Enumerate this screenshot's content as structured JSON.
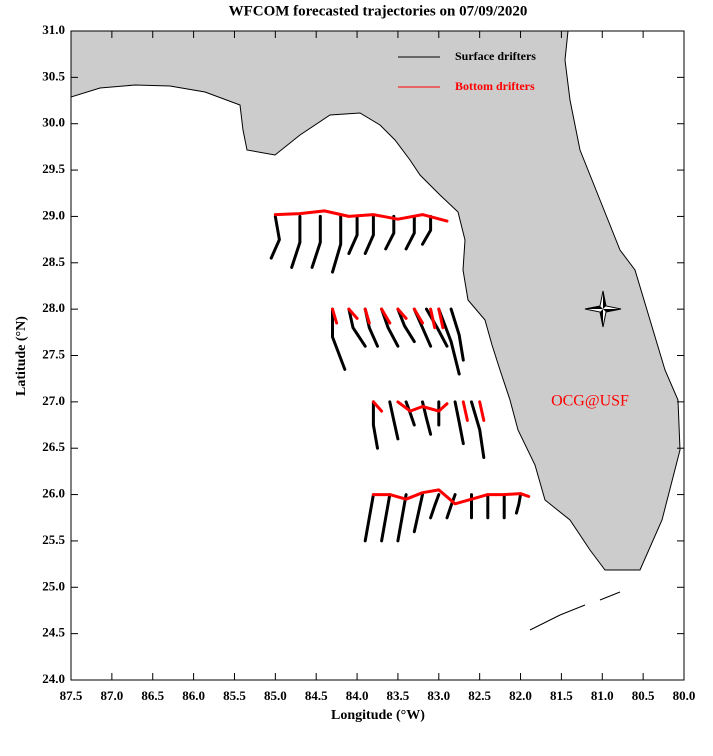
{
  "chart_data": {
    "type": "trajectory-map",
    "title": "WFCOM forecasted trajectories on 07/09/2020",
    "x_label": "Longitude (°W)",
    "y_label": "Latitude (°N)",
    "annotation": "OCG@USF",
    "xlim": [
      87.5,
      80.0
    ],
    "xticks": [
      87.5,
      {
        "value": 87,
        "label": "87.0"
      },
      86.5,
      {
        "value": 86,
        "label": "86.0"
      },
      85.5,
      {
        "value": 85,
        "label": "85.0"
      },
      84.5,
      {
        "value": 84,
        "label": "84.0"
      },
      83.5,
      {
        "value": 83,
        "label": "83.0"
      },
      82.5,
      {
        "value": 82,
        "label": "82.0"
      },
      81.5,
      {
        "value": 81,
        "label": "81.0"
      },
      80.5,
      {
        "value": 80,
        "label": "80.0"
      }
    ],
    "ylim": [
      24.0,
      31.0
    ],
    "yticks": [
      {
        "value": 24,
        "label": "24.0"
      },
      24.5,
      {
        "value": 25,
        "label": "25.0"
      },
      25.5,
      {
        "value": 26,
        "label": "26.0"
      },
      26.5,
      {
        "value": 27,
        "label": "27.0"
      },
      27.5,
      {
        "value": 28,
        "label": "28.0"
      },
      28.5,
      {
        "value": 29,
        "label": "29.0"
      },
      29.5,
      {
        "value": 30,
        "label": "30.0"
      },
      30.5,
      {
        "value": 31,
        "label": "31.0"
      }
    ],
    "legend": "top-right",
    "series": [
      {
        "name": "Surface drifters",
        "color": "#000000",
        "tracks": [
          {
            "x": [
              85.0,
              84.95,
              85.05
            ],
            "y": [
              29.0,
              28.75,
              28.55
            ]
          },
          {
            "x": [
              84.7,
              84.7,
              84.8
            ],
            "y": [
              29.0,
              28.72,
              28.45
            ]
          },
          {
            "x": [
              84.45,
              84.45,
              84.55
            ],
            "y": [
              29.0,
              28.72,
              28.45
            ]
          },
          {
            "x": [
              84.2,
              84.2,
              84.3
            ],
            "y": [
              29.0,
              28.7,
              28.4
            ]
          },
          {
            "x": [
              84.0,
              84.0,
              84.1
            ],
            "y": [
              29.0,
              28.8,
              28.6
            ]
          },
          {
            "x": [
              83.8,
              83.8,
              83.9
            ],
            "y": [
              29.0,
              28.8,
              28.6
            ]
          },
          {
            "x": [
              83.55,
              83.55,
              83.65
            ],
            "y": [
              29.0,
              28.82,
              28.65
            ]
          },
          {
            "x": [
              83.3,
              83.3,
              83.4
            ],
            "y": [
              29.0,
              28.82,
              28.65
            ]
          },
          {
            "x": [
              83.1,
              83.1,
              83.2
            ],
            "y": [
              29.0,
              28.85,
              28.7
            ]
          },
          {
            "x": [
              84.3,
              84.3,
              84.15
            ],
            "y": [
              28.0,
              27.7,
              27.35
            ]
          },
          {
            "x": [
              84.1,
              84.05,
              83.9
            ],
            "y": [
              28.0,
              27.8,
              27.6
            ]
          },
          {
            "x": [
              83.9,
              83.85,
              83.75
            ],
            "y": [
              28.0,
              27.8,
              27.6
            ]
          },
          {
            "x": [
              83.7,
              83.62,
              83.5
            ],
            "y": [
              28.0,
              27.8,
              27.6
            ]
          },
          {
            "x": [
              83.5,
              83.42,
              83.3
            ],
            "y": [
              28.0,
              27.82,
              27.65
            ]
          },
          {
            "x": [
              83.3,
              83.2,
              83.1
            ],
            "y": [
              28.0,
              27.8,
              27.6
            ]
          },
          {
            "x": [
              83.15,
              83.02,
              82.9
            ],
            "y": [
              28.0,
              27.8,
              27.6
            ]
          },
          {
            "x": [
              83.0,
              82.85,
              82.75
            ],
            "y": [
              28.0,
              27.65,
              27.3
            ]
          },
          {
            "x": [
              82.85,
              82.75,
              82.7
            ],
            "y": [
              28.0,
              27.72,
              27.45
            ]
          },
          {
            "x": [
              83.8,
              83.8,
              83.75
            ],
            "y": [
              27.0,
              26.75,
              26.5
            ]
          },
          {
            "x": [
              83.6,
              83.55,
              83.5
            ],
            "y": [
              27.0,
              26.8,
              26.6
            ]
          },
          {
            "x": [
              83.4,
              83.35,
              83.3
            ],
            "y": [
              27.0,
              26.88,
              26.75
            ]
          },
          {
            "x": [
              83.2,
              83.15,
              83.1
            ],
            "y": [
              27.0,
              26.82,
              26.65
            ]
          },
          {
            "x": [
              83.0,
              83.0,
              83.0
            ],
            "y": [
              27.0,
              26.88,
              26.75
            ]
          },
          {
            "x": [
              82.8,
              82.75,
              82.7
            ],
            "y": [
              27.0,
              26.78,
              26.55
            ]
          },
          {
            "x": [
              82.6,
              82.5,
              82.45
            ],
            "y": [
              27.0,
              26.7,
              26.4
            ]
          },
          {
            "x": [
              83.8,
              83.85,
              83.9
            ],
            "y": [
              26.0,
              25.75,
              25.5
            ]
          },
          {
            "x": [
              83.6,
              83.65,
              83.7
            ],
            "y": [
              26.0,
              25.75,
              25.5
            ]
          },
          {
            "x": [
              83.4,
              83.45,
              83.5
            ],
            "y": [
              26.0,
              25.75,
              25.5
            ]
          },
          {
            "x": [
              83.2,
              83.25,
              83.3
            ],
            "y": [
              26.0,
              25.8,
              25.6
            ]
          },
          {
            "x": [
              83.0,
              83.05,
              83.1
            ],
            "y": [
              26.0,
              25.88,
              25.75
            ]
          },
          {
            "x": [
              82.8,
              82.85,
              82.9
            ],
            "y": [
              26.0,
              25.88,
              25.75
            ]
          },
          {
            "x": [
              82.6,
              82.6,
              82.6
            ],
            "y": [
              26.0,
              25.88,
              25.75
            ]
          },
          {
            "x": [
              82.4,
              82.4,
              82.4
            ],
            "y": [
              26.0,
              25.88,
              25.75
            ]
          },
          {
            "x": [
              82.2,
              82.2,
              82.2
            ],
            "y": [
              26.0,
              25.88,
              25.75
            ]
          },
          {
            "x": [
              82.0,
              82.02,
              82.05
            ],
            "y": [
              26.0,
              25.9,
              25.8
            ]
          }
        ]
      },
      {
        "name": "Bottom drifters",
        "color": "#ff0000",
        "tracks": [
          {
            "x": [
              85.0,
              84.7,
              84.4,
              84.1,
              83.8,
              83.5,
              83.2,
              82.9
            ],
            "y": [
              29.02,
              29.03,
              29.06,
              29.0,
              29.02,
              28.97,
              29.02,
              28.95
            ]
          },
          {
            "x": [
              84.3,
              84.25
            ],
            "y": [
              28.0,
              27.85
            ]
          },
          {
            "x": [
              84.1,
              84.0
            ],
            "y": [
              28.0,
              27.9
            ]
          },
          {
            "x": [
              83.9,
              83.85
            ],
            "y": [
              28.0,
              27.85
            ]
          },
          {
            "x": [
              83.7,
              83.6
            ],
            "y": [
              28.0,
              27.85
            ]
          },
          {
            "x": [
              83.5,
              83.4
            ],
            "y": [
              28.0,
              27.9
            ]
          },
          {
            "x": [
              83.3,
              83.2
            ],
            "y": [
              28.0,
              27.85
            ]
          },
          {
            "x": [
              83.1,
              83.05
            ],
            "y": [
              28.0,
              27.8
            ]
          },
          {
            "x": [
              83.0,
              82.95
            ],
            "y": [
              28.0,
              27.8
            ]
          },
          {
            "x": [
              83.8,
              83.7
            ],
            "y": [
              27.0,
              26.9
            ]
          },
          {
            "x": [
              83.5,
              83.35,
              83.2,
              83.0,
              82.9
            ],
            "y": [
              27.0,
              26.9,
              26.95,
              26.9,
              26.98
            ]
          },
          {
            "x": [
              82.7,
              82.65
            ],
            "y": [
              27.0,
              26.8
            ]
          },
          {
            "x": [
              82.5,
              82.45
            ],
            "y": [
              27.0,
              26.8
            ]
          },
          {
            "x": [
              83.8,
              83.6,
              83.4,
              83.2,
              83.0,
              82.8,
              82.6,
              82.4,
              82.2,
              82.0,
              81.9
            ],
            "y": [
              26.0,
              26.0,
              25.95,
              26.02,
              26.05,
              25.9,
              25.95,
              26.0,
              26.0,
              26.01,
              25.98
            ]
          }
        ]
      }
    ]
  }
}
